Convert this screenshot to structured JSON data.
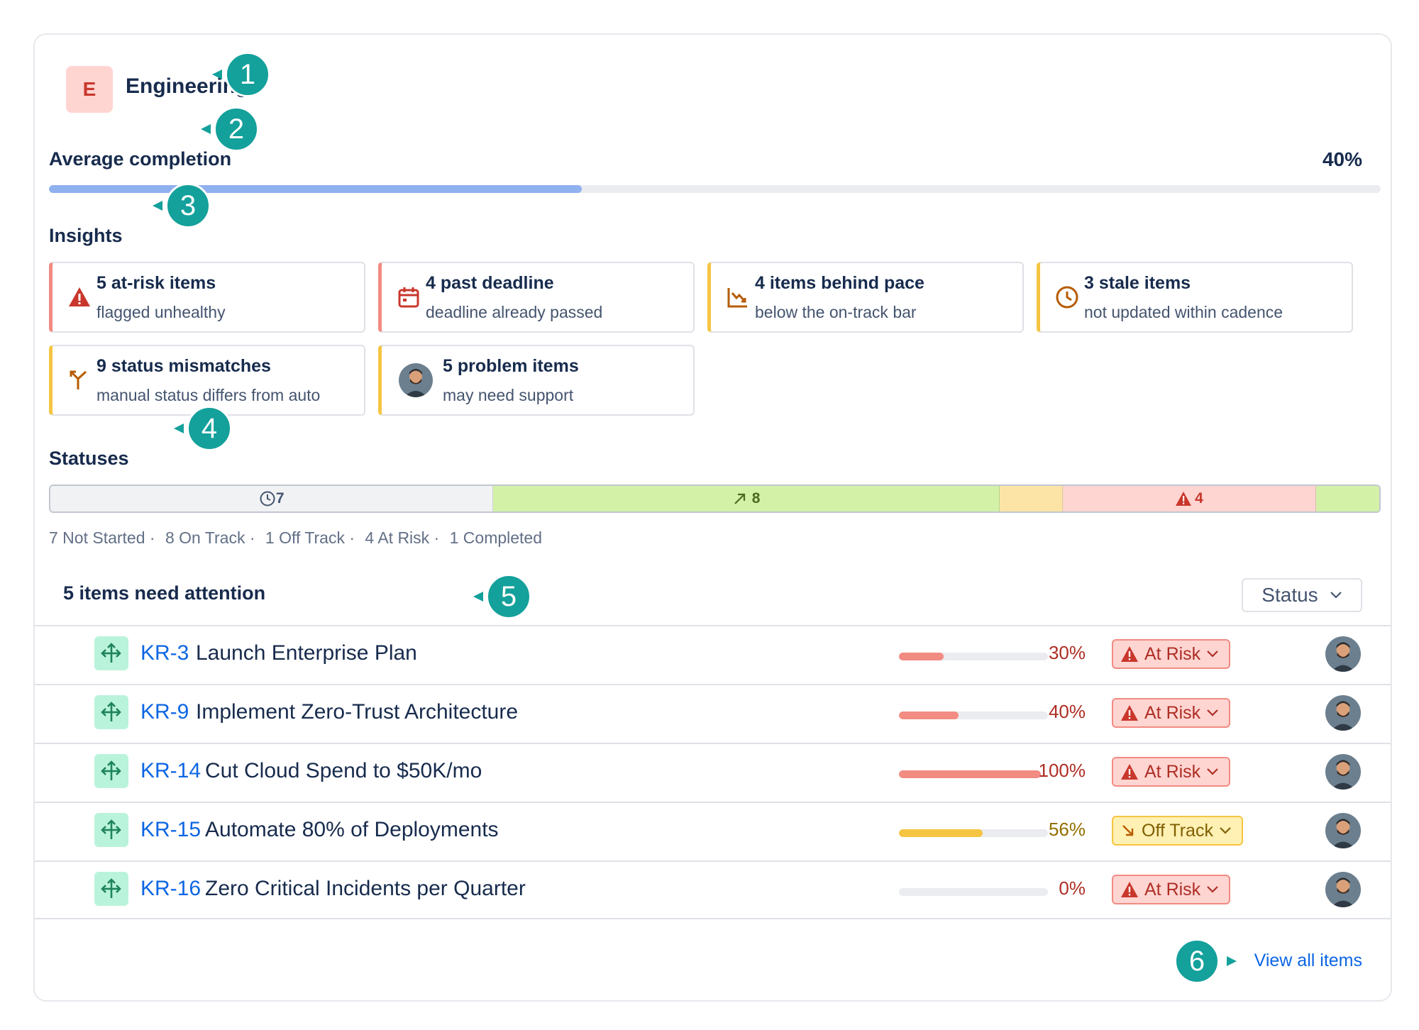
{
  "header": {
    "team_initial": "E",
    "team_name": "Engineering",
    "badge_color": "#ffd5d2"
  },
  "callouts": [
    "1",
    "2",
    "3",
    "4",
    "5",
    "6"
  ],
  "average_completion": {
    "label": "Average completion",
    "value_label": "40%",
    "value": 0.4
  },
  "insights": {
    "title": "Insights",
    "cards": [
      {
        "icon": "warning-triangle-icon",
        "title": "5 at-risk items",
        "subtitle": "flagged unhealthy",
        "accent": "#f28b82"
      },
      {
        "icon": "calendar-icon",
        "title": "4 past deadline",
        "subtitle": "deadline already passed",
        "accent": "#f28b82"
      },
      {
        "icon": "trend-down-icon",
        "title": "4 items behind pace",
        "subtitle": "below the on-track bar",
        "accent": "#f5c542"
      },
      {
        "icon": "clock-icon",
        "title": "3 stale items",
        "subtitle": "not updated within cadence",
        "accent": "#f5c542"
      },
      {
        "icon": "split-arrow-icon",
        "title": "9 status mismatches",
        "subtitle": "manual status differs from auto",
        "accent": "#f5c542"
      },
      {
        "icon": "avatar-icon",
        "title": "5 problem items",
        "subtitle": "may need support",
        "accent": "#f5c542"
      }
    ]
  },
  "statuses": {
    "title": "Statuses",
    "segments": [
      {
        "name": "Not Started",
        "count": 7,
        "label": "7",
        "color": "#f1f2f4",
        "text_color": "#44546f",
        "icon": "clock-icon"
      },
      {
        "name": "On Track",
        "count": 8,
        "label": "8",
        "color": "#d3f1a7",
        "text_color": "#4c6b1f",
        "icon": "arrow-up-right-icon"
      },
      {
        "name": "Off Track",
        "count": 1,
        "label": "",
        "color": "#fce4a6",
        "text_color": "#7f5f01",
        "icon": ""
      },
      {
        "name": "At Risk",
        "count": 4,
        "label": "4",
        "color": "#ffd5d2",
        "text_color": "#c9372c",
        "icon": "warning-triangle-icon"
      },
      {
        "name": "Completed",
        "count": 1,
        "label": "",
        "color": "#d3f1a7",
        "text_color": "#4c6b1f",
        "icon": ""
      }
    ],
    "summary": [
      "7 Not Started ·",
      "8 On Track ·",
      "1 Off Track ·",
      "4 At Risk ·",
      "1 Completed"
    ]
  },
  "attention": {
    "title": "5 items need attention",
    "filter_label": "Status",
    "items": [
      {
        "key": "KR-3",
        "title": "Launch Enterprise Plan",
        "progress": 0.3,
        "progress_label": "30%",
        "status": "At Risk",
        "status_type": "risk"
      },
      {
        "key": "KR-9",
        "title": "Implement Zero-Trust Architecture",
        "progress": 0.4,
        "progress_label": "40%",
        "status": "At Risk",
        "status_type": "risk"
      },
      {
        "key": "KR-14",
        "title": "Cut Cloud Spend to $50K/mo",
        "progress": 1.0,
        "progress_label": "100%",
        "status": "At Risk",
        "status_type": "risk"
      },
      {
        "key": "KR-15",
        "title": "Automate 80% of Deployments",
        "progress": 0.56,
        "progress_label": "56%",
        "status": "Off Track",
        "status_type": "off"
      },
      {
        "key": "KR-16",
        "title": "Zero Critical Incidents per Quarter",
        "progress": 0.0,
        "progress_label": "0%",
        "status": "At Risk",
        "status_type": "risk"
      }
    ],
    "view_all_label": "View all items"
  }
}
